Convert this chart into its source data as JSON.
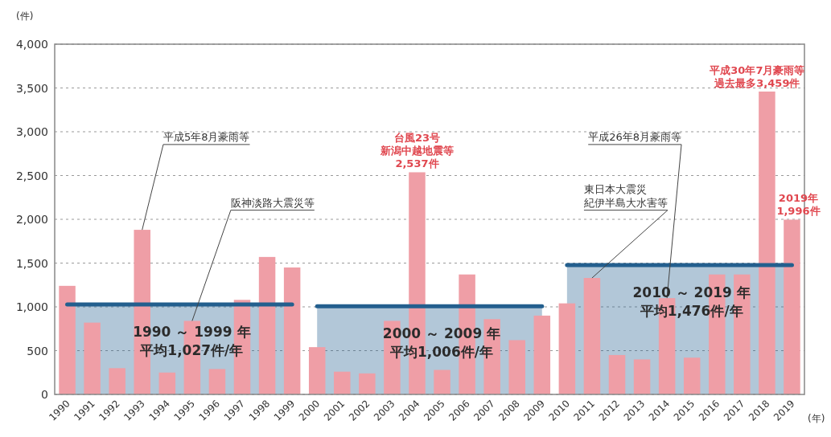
{
  "chart_data": {
    "type": "bar",
    "ylabel": "(件)",
    "xlabel": "(年)",
    "categories": [
      "1990",
      "1991",
      "1992",
      "1993",
      "1994",
      "1995",
      "1996",
      "1997",
      "1998",
      "1999",
      "2000",
      "2001",
      "2002",
      "2003",
      "2004",
      "2005",
      "2006",
      "2007",
      "2008",
      "2009",
      "2010",
      "2011",
      "2012",
      "2013",
      "2014",
      "2015",
      "2016",
      "2017",
      "2018",
      "2019"
    ],
    "series": [
      {
        "type": "area",
        "color": "#235f8e",
        "values": [
          1027,
          1027,
          1027,
          1027,
          1027,
          1027,
          1027,
          1027,
          1027,
          1027,
          null,
          null,
          null,
          null,
          null,
          null,
          null,
          null,
          null,
          null,
          null,
          null,
          null,
          null,
          null,
          null,
          null,
          null,
          null,
          null
        ]
      },
      {
        "type": "area",
        "color": "#235f8e",
        "values": [
          null,
          null,
          null,
          null,
          null,
          null,
          null,
          null,
          null,
          null,
          1006,
          1006,
          1006,
          1006,
          1006,
          1006,
          1006,
          1006,
          1006,
          1006,
          null,
          null,
          null,
          null,
          null,
          null,
          null,
          null,
          null,
          null
        ]
      },
      {
        "type": "area",
        "color": "#235f8e",
        "values": [
          null,
          null,
          null,
          null,
          null,
          null,
          null,
          null,
          null,
          null,
          null,
          null,
          null,
          null,
          null,
          null,
          null,
          null,
          null,
          null,
          1476,
          1476,
          1476,
          1476,
          1476,
          1476,
          1476,
          1476,
          1476,
          1476
        ]
      },
      {
        "color": "#ef9ea6",
        "values": [
          1240,
          820,
          300,
          1880,
          250,
          840,
          290,
          1080,
          1570,
          1450,
          540,
          260,
          240,
          840,
          2537,
          280,
          1370,
          860,
          620,
          900,
          1040,
          1330,
          450,
          400,
          1100,
          420,
          1370,
          1370,
          3459,
          1996
        ]
      }
    ],
    "ylim": [
      0,
      4000
    ],
    "yticks": [
      0,
      500,
      {
        "value": 1000,
        "label": "1,000"
      },
      {
        "value": 1500,
        "label": "1,500"
      },
      {
        "value": 2000,
        "label": "2,000"
      },
      {
        "value": 2500,
        "label": "2,500"
      },
      {
        "value": 3000,
        "label": "3,000"
      },
      {
        "value": 3500,
        "label": "3,500"
      },
      {
        "value": 4000,
        "label": "4,000"
      }
    ],
    "grid": "y",
    "annotations": [
      {
        "text": "平成5年8月豪雨等",
        "x": "1993",
        "y": 1880
      },
      {
        "text": "阪神淡路大震災等",
        "x": "1995",
        "y": 840
      },
      "台風23号",
      "新潟中越地震等",
      {
        "text": "2,537件",
        "x": "2004",
        "y": 2537
      },
      "東日本大震災",
      {
        "text": "紀伊半島大水害等",
        "x": "2011",
        "y": 1330
      },
      {
        "text": "平成26年8月豪雨等",
        "x": "2014",
        "y": 1100
      },
      "平成30年7月豪雨等",
      {
        "text": "過去最多3,459件",
        "x": "2018",
        "y": 3459
      },
      "2019年",
      {
        "text": "1,996件",
        "x": "2019",
        "y": 1996
      },
      "1990 ～ 1999 年",
      "平均1,027件/年",
      "2000 ～ 2009 年",
      "平均1,006件/年",
      "2010 ～ 2019 年",
      "平均1,476件/年"
    ]
  }
}
